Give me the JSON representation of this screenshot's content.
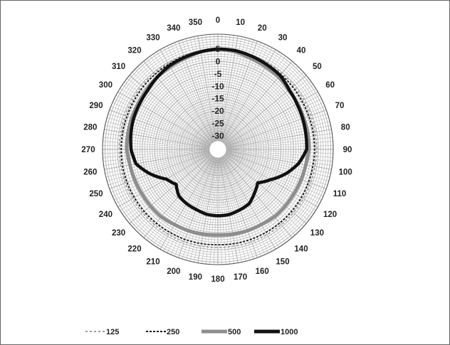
{
  "chart_data": {
    "type": "polar-line",
    "title": "",
    "angle_unit": "degrees",
    "angle_ticks": [
      0,
      10,
      20,
      30,
      40,
      50,
      60,
      70,
      80,
      90,
      100,
      110,
      120,
      130,
      140,
      150,
      160,
      170,
      180,
      190,
      200,
      210,
      220,
      230,
      240,
      250,
      260,
      270,
      280,
      290,
      300,
      310,
      320,
      330,
      340,
      350
    ],
    "radial_ticks": [
      5,
      0,
      -5,
      -10,
      -15,
      -20,
      -25,
      -30
    ],
    "radial_range": [
      -32,
      11
    ],
    "grid": true,
    "legend_position": "bottom",
    "series": [
      {
        "name": "125",
        "style": "dashed-light",
        "color": "#888888",
        "theta": [
          0,
          10,
          20,
          30,
          40,
          50,
          60,
          70,
          80,
          90,
          100,
          110,
          120,
          130,
          140,
          150,
          160,
          170,
          180,
          190,
          200,
          210,
          220,
          230,
          240,
          250,
          260,
          270,
          280,
          290,
          300,
          310,
          320,
          330,
          340,
          350
        ],
        "r": [
          5,
          5,
          4.8,
          4.8,
          4.6,
          4.5,
          4.5,
          4.5,
          4.4,
          4.4,
          4.3,
          4.3,
          4.3,
          4.3,
          4.2,
          4.2,
          4.2,
          4.1,
          4.1,
          4.1,
          4.2,
          4.2,
          4.2,
          4.2,
          4.2,
          4.3,
          4.3,
          4.3,
          4.3,
          4.4,
          4.4,
          4.5,
          4.6,
          4.7,
          4.8,
          5
        ]
      },
      {
        "name": "250",
        "style": "dashed-dark",
        "color": "#111111",
        "theta": [
          0,
          10,
          20,
          30,
          40,
          50,
          60,
          70,
          80,
          90,
          100,
          110,
          120,
          130,
          140,
          150,
          160,
          170,
          180,
          190,
          200,
          210,
          220,
          230,
          240,
          250,
          260,
          270,
          280,
          290,
          300,
          310,
          320,
          330,
          340,
          350
        ],
        "r": [
          5,
          4.8,
          4.5,
          4.2,
          4.0,
          3.8,
          3.6,
          3.5,
          3.5,
          3.5,
          3.4,
          3.4,
          3.4,
          3.4,
          3.3,
          3.2,
          3.2,
          3.1,
          3.0,
          3.1,
          3.2,
          3.2,
          3.3,
          3.4,
          3.4,
          3.5,
          3.5,
          3.5,
          3.5,
          3.5,
          3.6,
          3.8,
          4.0,
          4.2,
          4.5,
          4.8
        ]
      },
      {
        "name": "500",
        "style": "solid-thick-gray",
        "color": "#8e8e8e",
        "theta": [
          0,
          10,
          20,
          30,
          40,
          50,
          60,
          70,
          80,
          90,
          100,
          110,
          120,
          130,
          140,
          150,
          160,
          170,
          180,
          190,
          200,
          210,
          220,
          230,
          240,
          250,
          260,
          270,
          280,
          290,
          300,
          310,
          320,
          330,
          340,
          350
        ],
        "r": [
          5,
          4.5,
          3.5,
          3.0,
          2.6,
          1.8,
          1.6,
          1.3,
          1.3,
          1.2,
          0.5,
          0.2,
          0.0,
          0.0,
          0.0,
          -0.5,
          -0.6,
          -0.8,
          -1.0,
          -0.8,
          -0.6,
          -0.5,
          0.0,
          0.0,
          0.0,
          0.2,
          0.5,
          1.2,
          1.3,
          1.5,
          1.6,
          2.0,
          2.6,
          3.0,
          3.5,
          4.5
        ]
      },
      {
        "name": "1000",
        "style": "solid-thick-black",
        "color": "#111111",
        "theta": [
          0,
          10,
          20,
          30,
          40,
          50,
          60,
          70,
          80,
          90,
          100,
          110,
          120,
          130,
          140,
          150,
          160,
          170,
          180,
          190,
          200,
          210,
          220,
          230,
          240,
          250,
          260,
          270,
          280,
          290,
          300,
          310,
          320,
          330,
          340,
          350
        ],
        "r": [
          5,
          5,
          4.5,
          4.0,
          3.5,
          2.0,
          1.3,
          0.9,
          0.5,
          0.3,
          -2.5,
          -6.5,
          -11.0,
          -14.5,
          -12.5,
          -10.2,
          -9.5,
          -8.8,
          -8.7,
          -8.9,
          -9.7,
          -10.2,
          -11.0,
          -13.5,
          -11.5,
          -6.5,
          -2.0,
          -0.5,
          0.1,
          0.7,
          1.0,
          1.5,
          2.5,
          3.5,
          4.0,
          4.5
        ]
      }
    ]
  }
}
